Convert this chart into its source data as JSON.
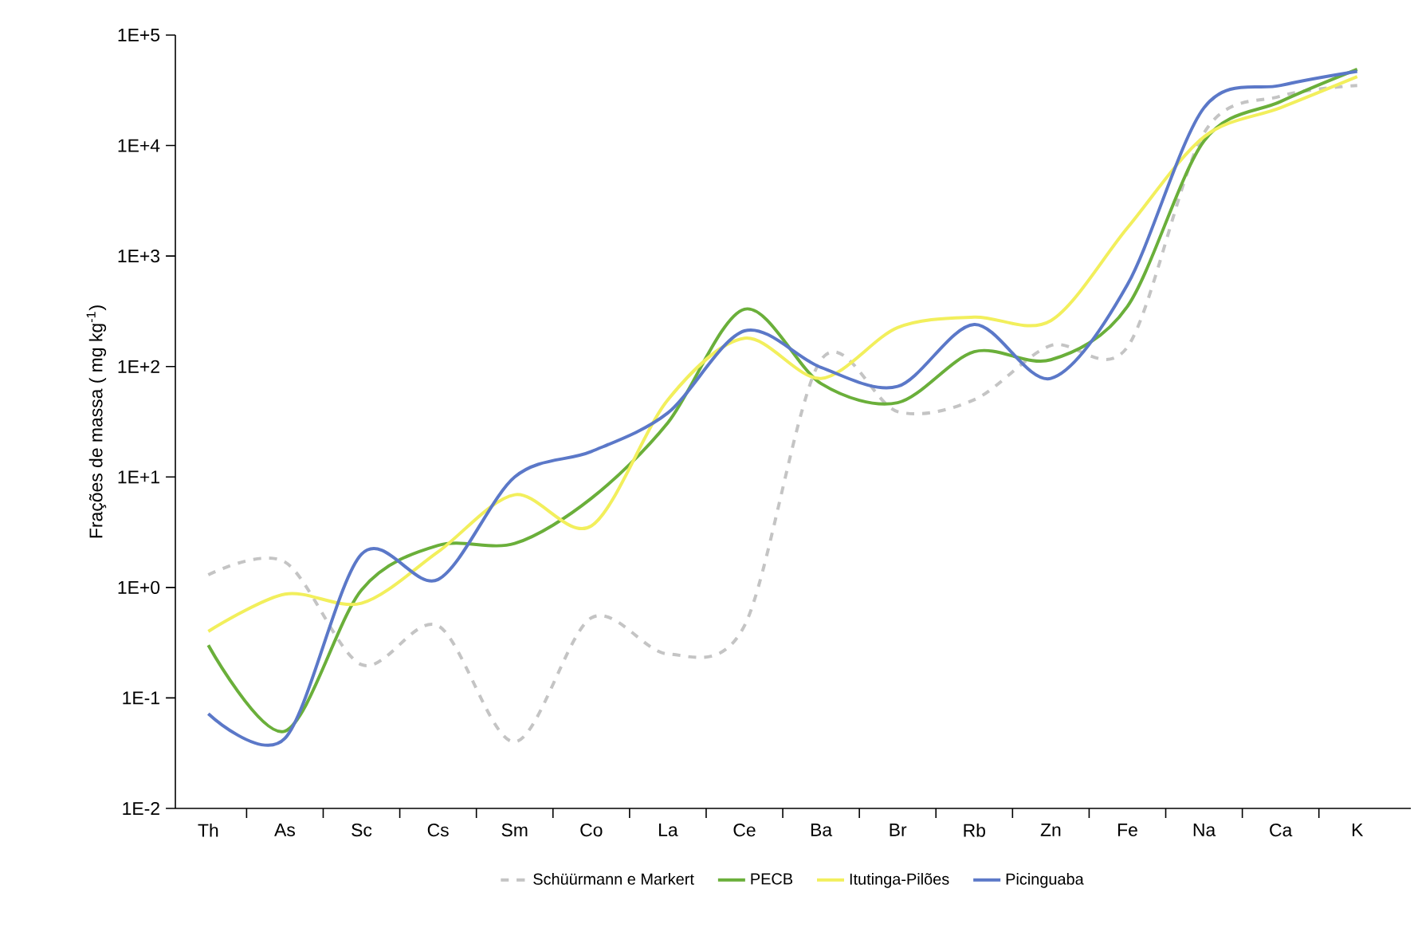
{
  "chart_data": {
    "type": "line",
    "ylabel": "Frações de massa ( mg kg$^{-1}$)",
    "log": "y",
    "legend": "bottom",
    "grid": false,
    "categories": [
      "Th",
      "As",
      "Sc",
      "Cs",
      "Sm",
      "Co",
      "La",
      "Ce",
      "Ba",
      "Br",
      "Rb",
      "Zn",
      "Fe",
      "Na",
      "Ca",
      "K"
    ],
    "ylim": [
      0.01,
      100000
    ],
    "yticks": [
      {
        "value": 0.01,
        "label": "1E-2"
      },
      {
        "value": 0.1,
        "label": "1E-1"
      },
      {
        "value": 1,
        "label": "1E+0"
      },
      {
        "value": 10,
        "label": "1E+1"
      },
      {
        "value": 100,
        "label": "1E+2"
      },
      {
        "value": 1000,
        "label": "1E+3"
      },
      {
        "value": 10000,
        "label": "1E+4"
      },
      {
        "value": 100000,
        "label": "1E+5"
      }
    ],
    "series": [
      {
        "name": "Schüürmann e Markert",
        "color": "#c4c4c4",
        "line_style": "dashed",
        "values": [
          1.3,
          1.7,
          0.2,
          0.45,
          0.04,
          0.53,
          0.25,
          0.45,
          115,
          39,
          50,
          155,
          150,
          13000,
          28000,
          35000
        ]
      },
      {
        "name": "PECB",
        "color": "#6aaf3a",
        "values": [
          0.3,
          0.05,
          0.95,
          2.4,
          2.5,
          6.4,
          31,
          330,
          70,
          47,
          136,
          115,
          350,
          11000,
          25000,
          49000
        ]
      },
      {
        "name": "Itutinga-Pilões",
        "color": "#f2ef5c",
        "values": [
          0.4,
          0.87,
          0.72,
          2.1,
          6.9,
          3.6,
          50,
          180,
          78,
          225,
          280,
          260,
          1800,
          12000,
          22000,
          42000
        ]
      },
      {
        "name": "Picinguaba",
        "color": "#5b78c8",
        "values": [
          0.072,
          0.043,
          2.0,
          1.18,
          10,
          17,
          38,
          210,
          98,
          66,
          240,
          78,
          550,
          22000,
          35000,
          47000
        ]
      }
    ]
  }
}
